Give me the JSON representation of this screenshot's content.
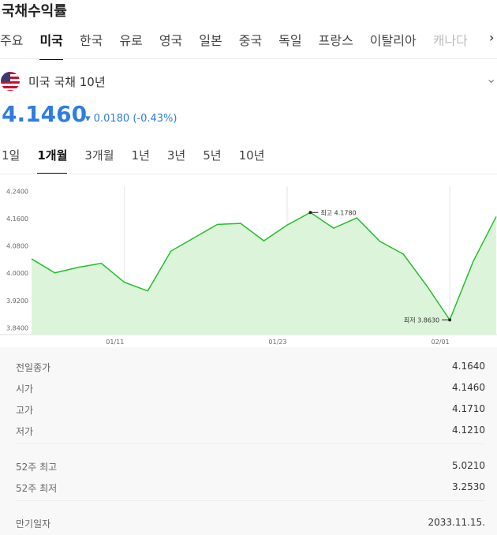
{
  "header": {
    "title": "국채수익률"
  },
  "tabs": {
    "items": [
      "주요",
      "미국",
      "한국",
      "유로",
      "영국",
      "일본",
      "중국",
      "독일",
      "프랑스",
      "이탈리아",
      "캐나다"
    ],
    "selected": 1
  },
  "instrument": {
    "name": "미국 국채 10년",
    "price": "4.1460",
    "change": "0.0180",
    "change_pct": "(-0.43%)"
  },
  "periods": {
    "items": [
      "1일",
      "1개월",
      "3개월",
      "1년",
      "3년",
      "5년",
      "10년"
    ],
    "selected": 1
  },
  "chart_data": {
    "type": "line",
    "categories": [
      null,
      null,
      null,
      null,
      "01/11",
      null,
      null,
      null,
      null,
      null,
      null,
      "01/23",
      null,
      null,
      null,
      null,
      null,
      null,
      "02/01",
      null,
      null
    ],
    "series": [
      {
        "name": "미국 국채 10년",
        "color": "#22c02a",
        "values": [
          4.042,
          4.001,
          4.017,
          4.029,
          3.973,
          3.948,
          4.065,
          4.104,
          4.143,
          4.146,
          4.095,
          4.141,
          4.178,
          4.132,
          4.162,
          4.093,
          4.056,
          3.964,
          3.863,
          4.033,
          4.166
        ]
      }
    ],
    "ylim": [
      3.82,
      4.255
    ],
    "yticks": [
      {
        "value": 3.84,
        "label": "3.8400"
      },
      {
        "value": 3.92,
        "label": "3.9200"
      },
      {
        "value": 4.0,
        "label": "4.0000"
      },
      {
        "value": 4.08,
        "label": "4.0800"
      },
      {
        "value": 4.16,
        "label": "4.1600"
      },
      {
        "value": 4.24,
        "label": "4.2400"
      }
    ],
    "annotations": [
      {
        "text": "최고 4.1780",
        "index": 12
      },
      {
        "text": "최저 3.8630",
        "index": 18
      }
    ]
  },
  "stats": {
    "groups": [
      [
        [
          "전일종가",
          "4.1640"
        ],
        [
          "시가",
          "4.1460"
        ],
        [
          "고가",
          "4.1710"
        ],
        [
          "저가",
          "4.1210"
        ]
      ],
      [
        [
          "52주 최고",
          "5.0210"
        ],
        [
          "52주 최저",
          "3.2530"
        ]
      ],
      [
        [
          "만기일자",
          "2033.11.15."
        ]
      ]
    ]
  }
}
